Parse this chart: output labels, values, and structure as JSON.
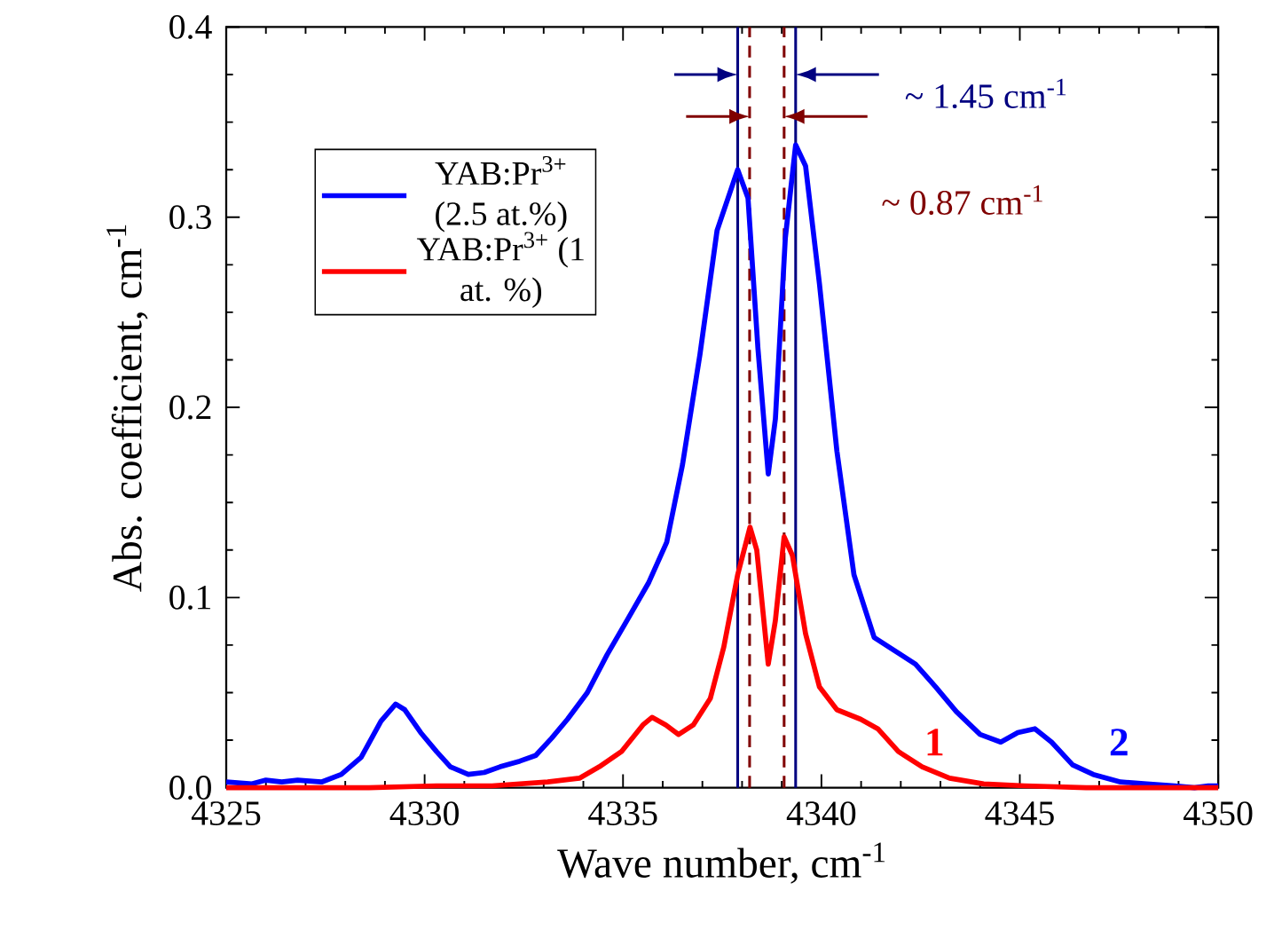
{
  "chart_data": {
    "type": "line",
    "xlabel": "Wave number, cm$^{-1}$",
    "ylabel": "Abs. coefficient, cm$^{-1}$",
    "xlim": [
      4325,
      4350
    ],
    "ylim": [
      0,
      0.4
    ],
    "xticks": [
      4325,
      4330,
      4335,
      4340,
      4345,
      4350
    ],
    "yticks": [
      {
        "value": 0,
        "label": "0.0"
      },
      {
        "value": 0.1,
        "label": "0.1"
      },
      {
        "value": 0.2,
        "label": "0.2"
      },
      {
        "value": 0.3,
        "label": "0.3"
      },
      {
        "value": 0.4,
        "label": "0.4"
      }
    ],
    "legend": "top left",
    "grid": false,
    "marker": "none",
    "line_style": "solid",
    "series": [
      {
        "name": "YAB:Pr$^{3+}$ (2.5 at.%)",
        "color": "#0000ff",
        "x": [
          4325,
          4325.65,
          4326.0,
          4326.4,
          4326.8,
          4327.4,
          4327.9,
          4328.4,
          4328.9,
          4329.27,
          4329.5,
          4329.9,
          4330.3,
          4330.65,
          4331.1,
          4331.5,
          4331.9,
          4332.4,
          4332.8,
          4333.2,
          4333.6,
          4334.1,
          4334.6,
          4335.1,
          4335.65,
          4336.1,
          4336.5,
          4336.94,
          4337.37,
          4337.89,
          4338.15,
          4338.4,
          4338.66,
          4338.84,
          4339.09,
          4339.35,
          4339.6,
          4339.95,
          4340.39,
          4340.82,
          4341.33,
          4341.85,
          4342.37,
          4342.88,
          4343.4,
          4344.0,
          4344.52,
          4344.95,
          4345.38,
          4345.8,
          4346.33,
          4346.85,
          4347.54,
          4348.2,
          4348.9,
          4349.4,
          4349.75,
          4350
        ],
        "values": [
          0.003,
          0.002,
          0.004,
          0.003,
          0.004,
          0.003,
          0.007,
          0.016,
          0.035,
          0.044,
          0.041,
          0.029,
          0.019,
          0.011,
          0.007,
          0.008,
          0.011,
          0.014,
          0.017,
          0.026,
          0.036,
          0.05,
          0.07,
          0.088,
          0.108,
          0.129,
          0.17,
          0.228,
          0.293,
          0.325,
          0.31,
          0.231,
          0.165,
          0.194,
          0.289,
          0.338,
          0.327,
          0.265,
          0.177,
          0.112,
          0.079,
          0.072,
          0.065,
          0.053,
          0.04,
          0.028,
          0.024,
          0.029,
          0.031,
          0.024,
          0.012,
          0.007,
          0.003,
          0.002,
          0.001,
          0,
          0.001,
          0.001
        ]
      },
      {
        "name": "YAB:Pr$^{3+}$ (1 at. %)",
        "color": "#ff0000",
        "x": [
          4325,
          4328.6,
          4330.3,
          4331.7,
          4333.1,
          4333.9,
          4334.4,
          4334.96,
          4335.5,
          4335.73,
          4336.08,
          4336.4,
          4336.77,
          4337.2,
          4337.54,
          4337.89,
          4338.2,
          4338.37,
          4338.66,
          4338.84,
          4339.06,
          4339.27,
          4339.6,
          4339.95,
          4340.39,
          4340.99,
          4341.42,
          4341.94,
          4342.54,
          4343.23,
          4344.09,
          4345.12,
          4346.67,
          4350
        ],
        "values": [
          0,
          0,
          0.001,
          0.001,
          0.003,
          0.005,
          0.011,
          0.019,
          0.033,
          0.037,
          0.033,
          0.028,
          0.033,
          0.047,
          0.074,
          0.112,
          0.137,
          0.125,
          0.065,
          0.088,
          0.132,
          0.122,
          0.081,
          0.053,
          0.041,
          0.036,
          0.031,
          0.019,
          0.011,
          0.005,
          0.002,
          0.001,
          0,
          0
        ]
      }
    ],
    "ref_lines": [
      {
        "axis": "x",
        "value": 4337.89,
        "color": "#000080",
        "line_style": "solid",
        "label": "~ 1.45 cm$^{-1}$"
      },
      {
        "axis": "x",
        "value": 4339.35,
        "color": "#000080",
        "line_style": "solid"
      },
      {
        "axis": "x",
        "value": 4338.19,
        "color": "#800000",
        "line_style": "dashed",
        "label": "~ 0.87 cm$^{-1}$"
      },
      {
        "axis": "x",
        "value": 4339.06,
        "color": "#800000",
        "line_style": "dashed"
      }
    ],
    "annotations": [
      "2",
      "1"
    ]
  }
}
